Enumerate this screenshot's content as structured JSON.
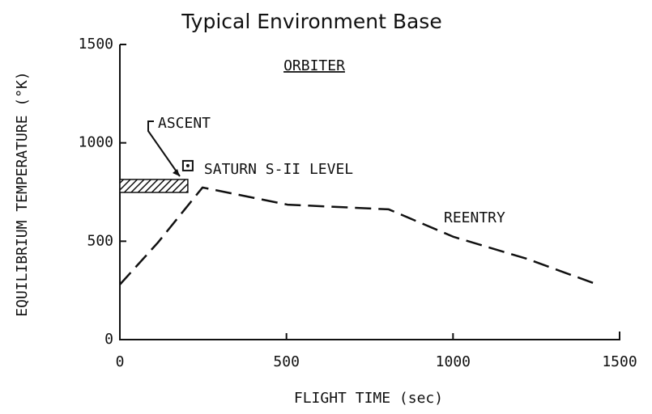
{
  "chart_data": {
    "type": "line",
    "title": "Typical Environment Base",
    "subtitle": "ORBITER",
    "x_label": "FLIGHT TIME (sec)",
    "y_label": "EQUILIBRIUM TEMPERATURE (°K)",
    "xlim": [
      0,
      1500
    ],
    "ylim": [
      0,
      1500
    ],
    "xticks": [
      0,
      500,
      1000,
      1500
    ],
    "yticks": [
      0,
      500,
      1000,
      1500
    ],
    "series": [
      {
        "name": "REENTRY",
        "color": "#111111",
        "x": [
          0,
          114,
          248,
          503,
          807,
          1002,
          1221,
          1427
        ],
        "values": [
          280,
          493,
          773,
          686,
          662,
          522,
          411,
          284
        ]
      }
    ],
    "ascent": {
      "label": "ASCENT",
      "x": [
        0,
        204
      ],
      "y": [
        748,
        814
      ]
    },
    "marker": {
      "label": "SATURN S-II LEVEL",
      "x": 204,
      "y": 884
    }
  }
}
